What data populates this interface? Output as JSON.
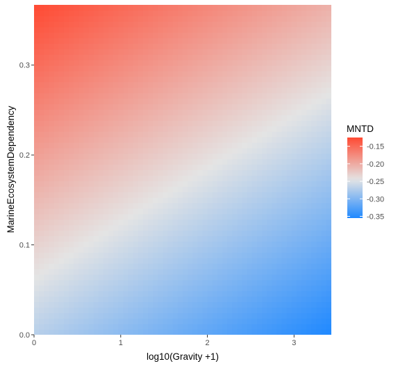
{
  "chart_data": {
    "type": "heatmap",
    "title": "",
    "xlabel": "log10(Gravity +1)",
    "ylabel": "MarineEcosystemDependency",
    "xlim": [
      0,
      3.43
    ],
    "ylim": [
      0,
      0.367
    ],
    "x_ticks": [
      0,
      1,
      2,
      3
    ],
    "x_tick_labels": [
      "0",
      "1",
      "2",
      "3"
    ],
    "y_ticks": [
      0.0,
      0.1,
      0.2,
      0.3
    ],
    "y_tick_labels": [
      "0.0",
      "0.1",
      "0.2",
      "0.3"
    ],
    "fill_surface": {
      "description": "linear surface of MNTD over x and y",
      "corner_values": {
        "x0_y0": -0.27,
        "x_max_y0": -0.355,
        "x0_y_max": -0.125,
        "x_max_y_max": -0.205
      }
    },
    "legend": {
      "title": "MNTD",
      "placement": "right",
      "range": [
        -0.355,
        -0.125
      ],
      "ticks": [
        -0.15,
        -0.2,
        -0.25,
        -0.3,
        -0.35
      ],
      "tick_labels": [
        "-0.15",
        "-0.20",
        "-0.25",
        "-0.30",
        "-0.35"
      ]
    },
    "colors": {
      "low": "#1E88FF",
      "mid": "#E4E4E4",
      "high": "#FF4A33",
      "midpoint_value": -0.245,
      "axis_text": "#4D4D4D",
      "title_text": "#000000"
    },
    "grid": false
  }
}
